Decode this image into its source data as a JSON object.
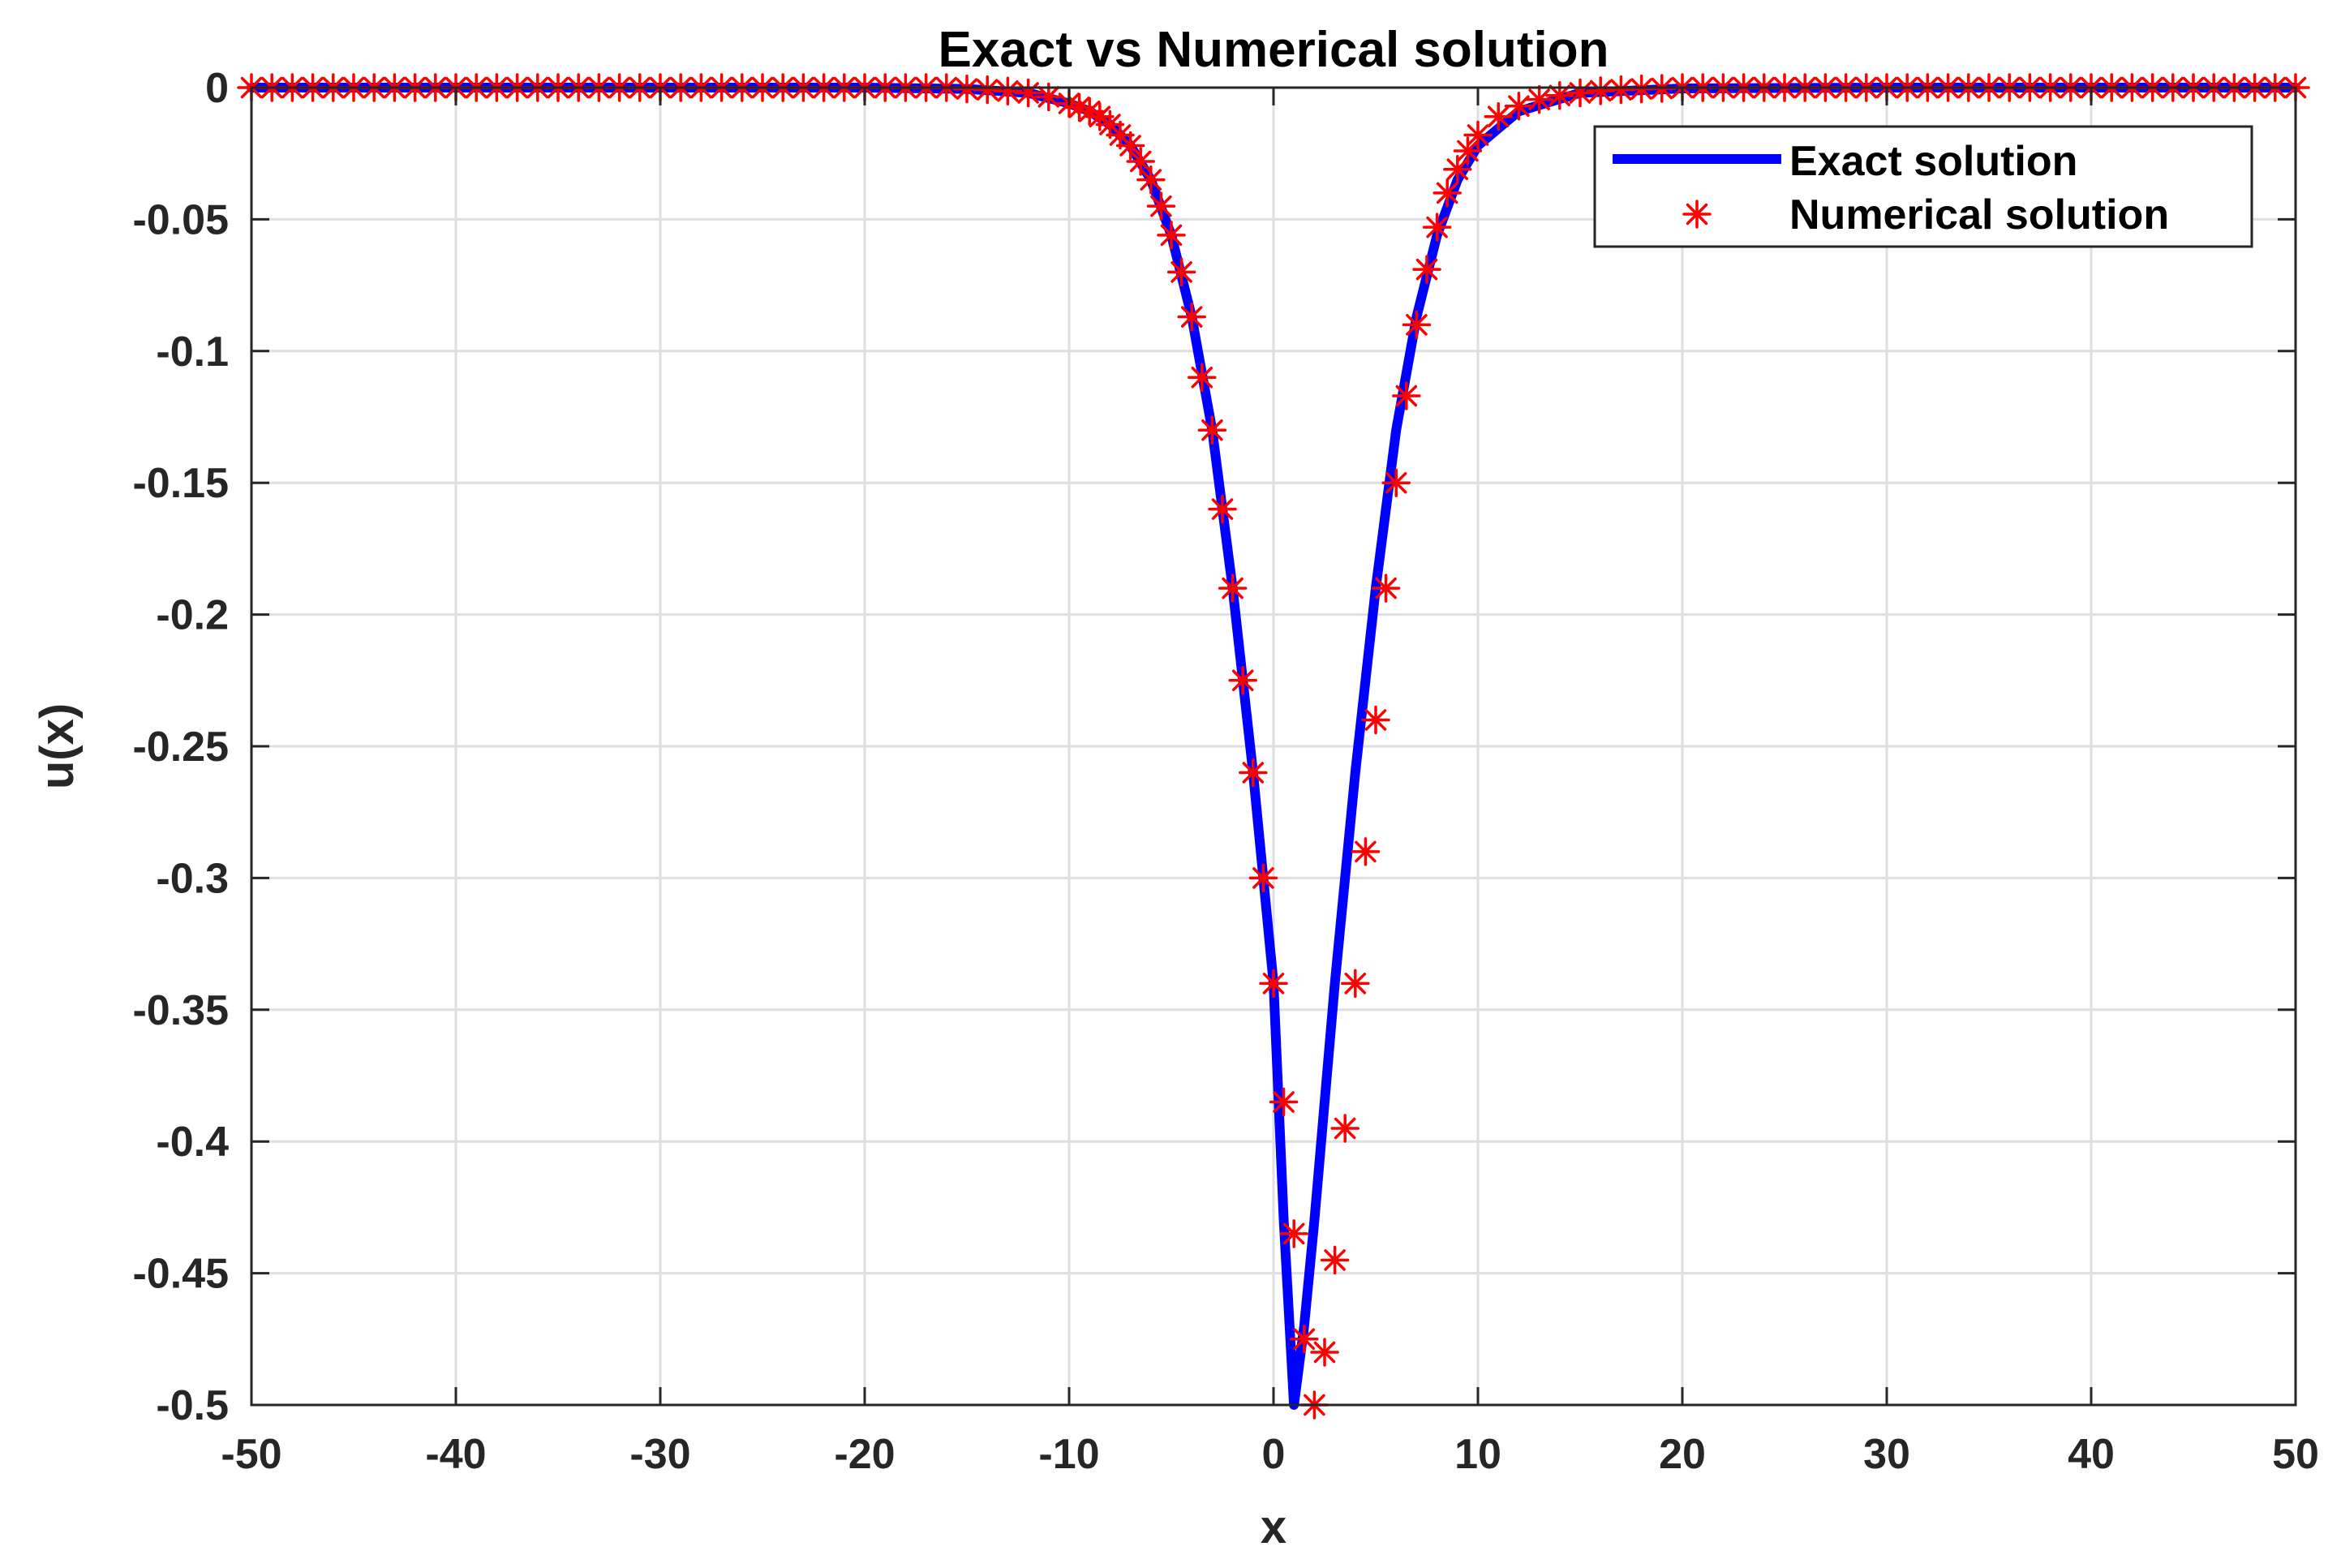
{
  "chart_data": {
    "type": "line",
    "title": "Exact vs Numerical solution",
    "xlabel": "x",
    "ylabel": "u(x)",
    "xlim": [
      -50,
      50
    ],
    "ylim": [
      -0.5,
      0
    ],
    "xticks": [
      -50,
      -40,
      -30,
      -20,
      -10,
      0,
      10,
      20,
      30,
      40,
      50
    ],
    "xtick_labels": [
      "-50",
      "-40",
      "-30",
      "-20",
      "-10",
      "0",
      "10",
      "20",
      "30",
      "40",
      "50"
    ],
    "yticks": [
      0,
      -0.05,
      -0.1,
      -0.15,
      -0.2,
      -0.25,
      -0.3,
      -0.35,
      -0.4,
      -0.45,
      -0.5
    ],
    "ytick_labels": [
      "0",
      "-0.05",
      "-0.1",
      "-0.15",
      "-0.2",
      "-0.25",
      "-0.3",
      "-0.35",
      "-0.4",
      "-0.45",
      "-0.5"
    ],
    "grid": true,
    "legend_position": "top-right",
    "series": [
      {
        "name": "Exact solution",
        "style": "line",
        "color": "#0000ff",
        "x": [
          -50,
          -40,
          -30,
          -20,
          -15,
          -12,
          -10,
          -9,
          -8,
          -7,
          -6,
          -5,
          -4,
          -3,
          -2,
          -1,
          0,
          0.5,
          1,
          1.5,
          2,
          3,
          4,
          5,
          6,
          7,
          8,
          9,
          10,
          12,
          15,
          20,
          30,
          40,
          50
        ],
        "y": [
          0,
          0,
          0,
          0,
          -0.0005,
          -0.002,
          -0.006,
          -0.009,
          -0.014,
          -0.022,
          -0.035,
          -0.056,
          -0.087,
          -0.13,
          -0.19,
          -0.26,
          -0.34,
          -0.43,
          -0.5,
          -0.47,
          -0.43,
          -0.34,
          -0.26,
          -0.19,
          -0.13,
          -0.087,
          -0.056,
          -0.035,
          -0.022,
          -0.009,
          -0.002,
          -0.0003,
          0,
          0,
          0
        ]
      },
      {
        "name": "Numerical solution",
        "style": "markers",
        "marker": "asterisk",
        "color": "#ff0000",
        "x": [
          -50,
          -49,
          -48,
          -47,
          -46,
          -45,
          -44,
          -43,
          -42,
          -41,
          -40,
          -39,
          -38,
          -37,
          -36,
          -35,
          -34,
          -33,
          -32,
          -31,
          -30,
          -29,
          -28,
          -27,
          -26,
          -25,
          -24,
          -23,
          -22,
          -21,
          -20,
          -19,
          -18,
          -17,
          -16,
          -15,
          -14,
          -13,
          -12,
          -11,
          -10,
          -9.5,
          -9,
          -8.5,
          -8,
          -7.5,
          -7,
          -6.5,
          -6,
          -5.5,
          -5,
          -4.5,
          -4,
          -3.5,
          -3,
          -2.5,
          -2,
          -1.5,
          -1,
          -0.5,
          0,
          0.5,
          1,
          1.5,
          2,
          2.5,
          3,
          3.5,
          4,
          4.5,
          5,
          5.5,
          6,
          6.5,
          7,
          7.5,
          8,
          8.5,
          9,
          9.5,
          10,
          11,
          12,
          13,
          14,
          15,
          16,
          17,
          18,
          19,
          20,
          21,
          22,
          23,
          24,
          25,
          26,
          27,
          28,
          29,
          30,
          31,
          32,
          33,
          34,
          35,
          36,
          37,
          38,
          39,
          40,
          41,
          42,
          43,
          44,
          45,
          46,
          47,
          48,
          49,
          50
        ],
        "y": [
          0,
          0,
          0,
          0,
          0,
          0,
          0,
          0,
          0,
          0,
          0,
          0,
          0,
          0,
          0,
          0,
          0,
          0,
          0,
          0,
          0,
          0,
          0,
          0,
          0,
          0,
          0,
          0,
          0,
          0,
          0,
          0,
          0,
          0,
          0,
          -0.0005,
          -0.0008,
          -0.0013,
          -0.002,
          -0.0035,
          -0.006,
          -0.0075,
          -0.009,
          -0.011,
          -0.014,
          -0.018,
          -0.022,
          -0.028,
          -0.035,
          -0.045,
          -0.056,
          -0.07,
          -0.087,
          -0.11,
          -0.13,
          -0.16,
          -0.19,
          -0.225,
          -0.26,
          -0.3,
          -0.34,
          -0.385,
          -0.435,
          -0.475,
          -0.5,
          -0.48,
          -0.445,
          -0.395,
          -0.34,
          -0.29,
          -0.24,
          -0.19,
          -0.15,
          -0.117,
          -0.09,
          -0.069,
          -0.053,
          -0.04,
          -0.031,
          -0.024,
          -0.018,
          -0.011,
          -0.007,
          -0.0045,
          -0.003,
          -0.002,
          -0.0012,
          -0.0008,
          -0.0005,
          -0.0003,
          0,
          0,
          0,
          0,
          0,
          0,
          0,
          0,
          0,
          0,
          0,
          0,
          0,
          0,
          0,
          0,
          0,
          0,
          0,
          0,
          0,
          0,
          0,
          0,
          0,
          0,
          0,
          0,
          0,
          0,
          0
        ]
      }
    ]
  }
}
